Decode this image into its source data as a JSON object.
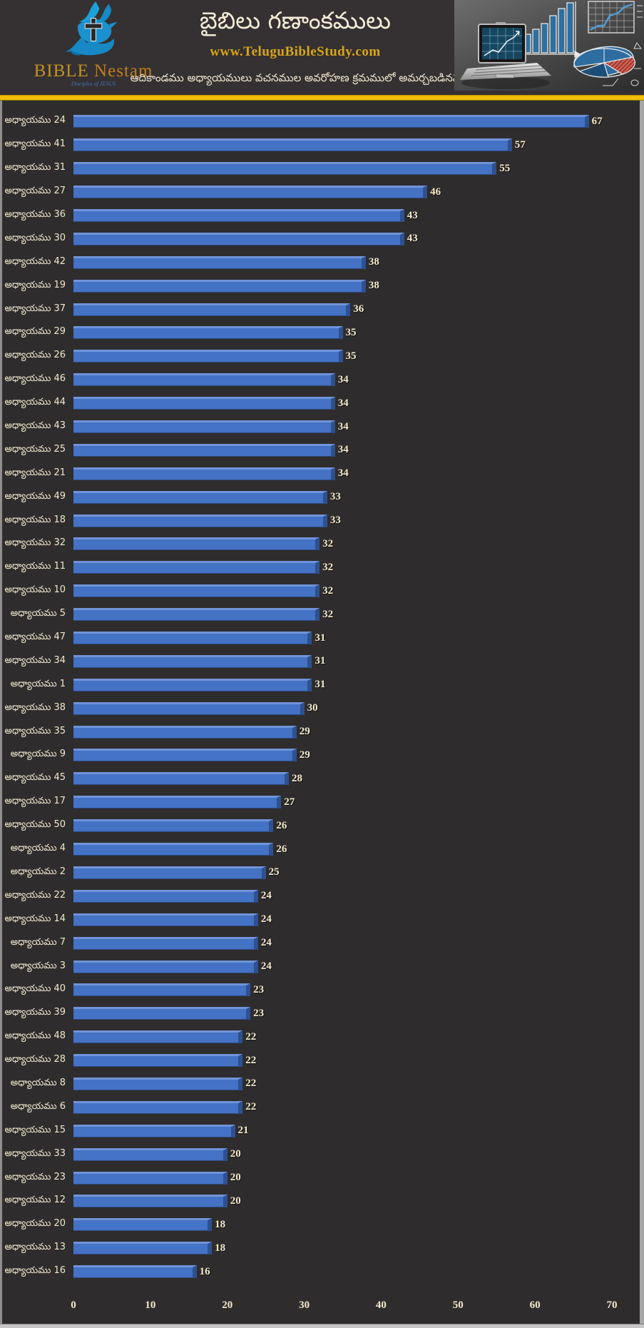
{
  "header": {
    "brand_word1": "BIBLE",
    "brand_word2": " Nestam",
    "tagline": "Disciples of JESUS",
    "title": "బైబిలు గణాంకములు",
    "website": "www.TeluguBibleStudy.com",
    "subtitle": "ఆదికాండము అధ్యాయములు వచనముల అవరోహణ క్రమములో అమర్చబడినవి"
  },
  "chart_data": {
    "type": "bar",
    "orientation": "horizontal",
    "title": "బైబిలు గణాంకములు",
    "subtitle": "ఆదికాండము అధ్యాయములు వచనముల అవరోహణ క్రమములో అమర్చబడినవి",
    "category_prefix": "అధ్యాయము",
    "categories": [
      "అధ్యాయము 24",
      "అధ్యాయము 41",
      "అధ్యాయము 31",
      "అధ్యాయము 27",
      "అధ్యాయము 36",
      "అధ్యాయము 30",
      "అధ్యాయము 42",
      "అధ్యాయము 19",
      "అధ్యాయము 37",
      "అధ్యాయము 29",
      "అధ్యాయము 26",
      "అధ్యాయము 46",
      "అధ్యాయము 44",
      "అధ్యాయము 43",
      "అధ్యాయము 25",
      "అధ్యాయము 21",
      "అధ్యాయము 49",
      "అధ్యాయము 18",
      "అధ్యాయము 32",
      "అధ్యాయము 11",
      "అధ్యాయము 10",
      "అధ్యాయము 5",
      "అధ్యాయము 47",
      "అధ్యాయము 34",
      "అధ్యాయము 1",
      "అధ్యాయము 38",
      "అధ్యాయము 35",
      "అధ్యాయము 9",
      "అధ్యాయము 45",
      "అధ్యాయము 17",
      "అధ్యాయము 50",
      "అధ్యాయము 4",
      "అధ్యాయము 2",
      "అధ్యాయము 22",
      "అధ్యాయము 14",
      "అధ్యాయము 7",
      "అధ్యాయము 3",
      "అధ్యాయము 40",
      "అధ్యాయము 39",
      "అధ్యాయము 48",
      "అధ్యాయము 28",
      "అధ్యాయము 8",
      "అధ్యాయము 6",
      "అధ్యాయము 15",
      "అధ్యాయము 33",
      "అధ్యాయము 23",
      "అధ్యాయము 12",
      "అధ్యాయము 20",
      "అధ్యాయము 13",
      "అధ్యాయము 16"
    ],
    "values": [
      67,
      57,
      55,
      46,
      43,
      43,
      38,
      38,
      36,
      35,
      35,
      34,
      34,
      34,
      34,
      34,
      33,
      33,
      32,
      32,
      32,
      32,
      31,
      31,
      31,
      30,
      29,
      29,
      28,
      27,
      26,
      26,
      25,
      24,
      24,
      24,
      24,
      23,
      23,
      22,
      22,
      22,
      22,
      21,
      20,
      20,
      20,
      18,
      18,
      16
    ],
    "xlabel": "",
    "ylabel": "",
    "xlim": [
      0,
      70
    ],
    "x_ticks": [
      0,
      10,
      20,
      30,
      40,
      50,
      60,
      70
    ],
    "grid": false,
    "legend": "none",
    "bar_color": "#4472C4",
    "bar_highlight_color": "#7094D8",
    "bar_side_color": "#2D5191",
    "value_labels_shown": true
  },
  "colors": {
    "header_bg": "#353132",
    "chart_bg": "#2F2C2D",
    "divider_yellow": "#EEC008",
    "text_cream": "#F3EACC",
    "gold": "#D9A516",
    "logo_blue": "#1E88C7",
    "footer_edge": "#C6C6C6"
  }
}
